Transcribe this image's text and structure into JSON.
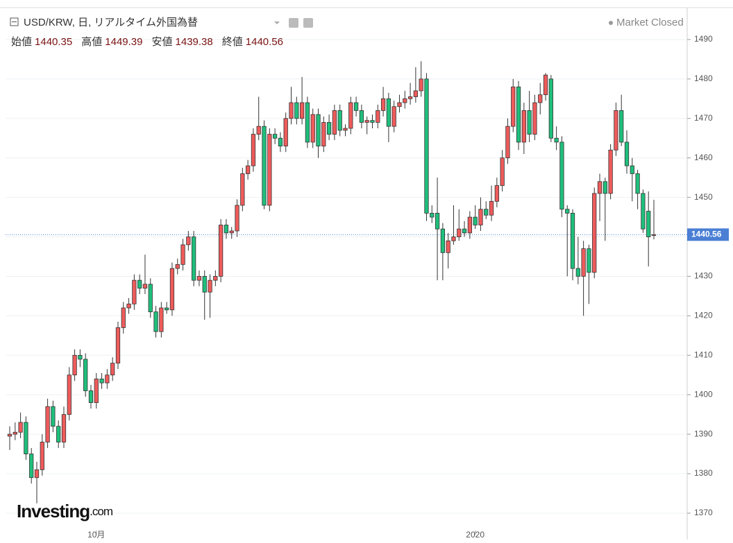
{
  "chart_data": {
    "type": "candlestick",
    "title": "USD/KRW, 日, リアルタイム外国為替",
    "status": "Market Closed",
    "ohlc_labels": [
      "始値",
      "高値",
      "安値",
      "終値"
    ],
    "brand": "Investing",
    "brand_suffix": ".com",
    "up_color": "#ef5b5b",
    "down_color": "#1fbf7c",
    "price_line_color": "#4a7fd4",
    "ylim": [
      1365.6,
      1497.9
    ],
    "yticks": [
      1370,
      1380,
      1390,
      1400,
      1410,
      1420,
      1430,
      1440,
      1450,
      1460,
      1470,
      1480,
      1490
    ],
    "grid": true,
    "categories": [
      null,
      null,
      null,
      null,
      null,
      null,
      null,
      null,
      null,
      null,
      null,
      null,
      null,
      null,
      null,
      null,
      "10月",
      null,
      null,
      null,
      null,
      null,
      null,
      null,
      null,
      null,
      null,
      null,
      null,
      null,
      null,
      null,
      null,
      null,
      null,
      null,
      null,
      null,
      null,
      null,
      null,
      null,
      null,
      null,
      null,
      null,
      null,
      null,
      null,
      null,
      null,
      null,
      null,
      null,
      null,
      null,
      null,
      null,
      null,
      null,
      null,
      null,
      null,
      null,
      null,
      null,
      null,
      null,
      null,
      null,
      null,
      null,
      null,
      null,
      null,
      null,
      null,
      null,
      null,
      null,
      null,
      null,
      null,
      null,
      null,
      null,
      "2020",
      null,
      null,
      null,
      null,
      null,
      null,
      null,
      null,
      null,
      null,
      null,
      null,
      null,
      null,
      null,
      null,
      null,
      null,
      null,
      null,
      null,
      null,
      null,
      null,
      null,
      null,
      null,
      null,
      null,
      null,
      null,
      null,
      null
    ],
    "candles": [
      [
        1389.5,
        1392,
        1386,
        1390
      ],
      [
        1390,
        1393,
        1388.5,
        1390.5
      ],
      [
        1390.5,
        1395.5,
        1389,
        1393
      ],
      [
        1393,
        1394.5,
        1383.5,
        1385
      ],
      [
        1385,
        1386.5,
        1377.5,
        1379
      ],
      [
        1379,
        1383,
        1372.5,
        1381
      ],
      [
        1381,
        1390,
        1379.5,
        1388
      ],
      [
        1388,
        1399,
        1386.5,
        1397
      ],
      [
        1397,
        1398.5,
        1390.5,
        1392
      ],
      [
        1392,
        1393.5,
        1386.5,
        1388
      ],
      [
        1388,
        1397,
        1386.5,
        1395
      ],
      [
        1395,
        1407,
        1393.5,
        1405
      ],
      [
        1405,
        1411.5,
        1403.5,
        1410
      ],
      [
        1410,
        1411.5,
        1407,
        1409
      ],
      [
        1409,
        1410.5,
        1399.5,
        1401
      ],
      [
        1401,
        1402.5,
        1396.5,
        1398
      ],
      [
        1398,
        1405.5,
        1396.5,
        1404
      ],
      [
        1404,
        1405.5,
        1401.5,
        1403
      ],
      [
        1403,
        1406.5,
        1401.5,
        1405
      ],
      [
        1405,
        1409.5,
        1403.5,
        1408
      ],
      [
        1408,
        1418.5,
        1406.5,
        1417
      ],
      [
        1417,
        1423.5,
        1415.5,
        1422
      ],
      [
        1422,
        1424.5,
        1420.5,
        1423
      ],
      [
        1423,
        1430.5,
        1421.5,
        1429
      ],
      [
        1429,
        1430.5,
        1425.5,
        1427
      ],
      [
        1427,
        1435.5,
        1425.5,
        1428
      ],
      [
        1428,
        1429.5,
        1419.5,
        1421
      ],
      [
        1421,
        1422.5,
        1414.5,
        1416
      ],
      [
        1416,
        1423.5,
        1414.5,
        1422
      ],
      [
        1422,
        1423.5,
        1420.5,
        1421.5
      ],
      [
        1421.5,
        1433.5,
        1420,
        1432
      ],
      [
        1432,
        1434.5,
        1430.5,
        1433
      ],
      [
        1433,
        1439.5,
        1431.5,
        1438
      ],
      [
        1438,
        1441.5,
        1436.5,
        1440
      ],
      [
        1440,
        1441.5,
        1427.5,
        1429
      ],
      [
        1429,
        1431.5,
        1427.5,
        1430
      ],
      [
        1430,
        1431.5,
        1419,
        1426
      ],
      [
        1426,
        1430.5,
        1419.5,
        1429
      ],
      [
        1429,
        1431.5,
        1427.5,
        1430
      ],
      [
        1430,
        1444.5,
        1428.5,
        1443
      ],
      [
        1443,
        1444.5,
        1439.5,
        1441
      ],
      [
        1441,
        1442.5,
        1439.5,
        1441.5
      ],
      [
        1441.5,
        1449.5,
        1440,
        1448
      ],
      [
        1448,
        1457.5,
        1446.5,
        1456
      ],
      [
        1456,
        1459.5,
        1454.5,
        1458
      ],
      [
        1458,
        1467.5,
        1456.5,
        1466
      ],
      [
        1466,
        1475.5,
        1464.5,
        1468
      ],
      [
        1468,
        1469.5,
        1447,
        1448
      ],
      [
        1448,
        1467.5,
        1446.5,
        1466
      ],
      [
        1466,
        1467.5,
        1463.5,
        1465
      ],
      [
        1465,
        1466.5,
        1461.5,
        1463
      ],
      [
        1463,
        1471.5,
        1461.5,
        1470
      ],
      [
        1470,
        1478,
        1468.5,
        1474
      ],
      [
        1474,
        1475.5,
        1468.5,
        1470
      ],
      [
        1470,
        1480.5,
        1468.5,
        1474
      ],
      [
        1474,
        1475.5,
        1462.5,
        1464
      ],
      [
        1464,
        1472.5,
        1462.5,
        1471
      ],
      [
        1471,
        1472.5,
        1460,
        1463
      ],
      [
        1463,
        1470.5,
        1461.5,
        1469
      ],
      [
        1469,
        1471,
        1464.5,
        1466
      ],
      [
        1466,
        1473.5,
        1464.5,
        1472
      ],
      [
        1472,
        1473.5,
        1465.5,
        1467
      ],
      [
        1467,
        1468.5,
        1465.5,
        1467.5
      ],
      [
        1467.5,
        1475.5,
        1466,
        1474
      ],
      [
        1474,
        1475.5,
        1470.5,
        1472
      ],
      [
        1472,
        1473.5,
        1467.5,
        1469
      ],
      [
        1469,
        1470.5,
        1466,
        1469.5
      ],
      [
        1469.5,
        1471,
        1467.5,
        1469
      ],
      [
        1469,
        1473.5,
        1467.5,
        1472
      ],
      [
        1472,
        1478,
        1470.5,
        1475
      ],
      [
        1475,
        1476.5,
        1464,
        1468
      ],
      [
        1468,
        1474.5,
        1466.5,
        1473
      ],
      [
        1473,
        1476,
        1471.5,
        1474
      ],
      [
        1474,
        1477,
        1472.5,
        1475
      ],
      [
        1475,
        1479,
        1473.5,
        1475.5
      ],
      [
        1475.5,
        1483,
        1474,
        1477
      ],
      [
        1477,
        1484.5,
        1475.5,
        1480
      ],
      [
        1480,
        1481.5,
        1444,
        1446
      ],
      [
        1446,
        1448,
        1443.5,
        1445
      ],
      [
        1446,
        1455,
        1429,
        1442
      ],
      [
        1442,
        1443.5,
        1429,
        1436
      ],
      [
        1436,
        1441,
        1432,
        1439
      ],
      [
        1439,
        1448,
        1438,
        1440
      ],
      [
        1440,
        1447,
        1439,
        1442
      ],
      [
        1442,
        1444,
        1440,
        1441
      ],
      [
        1441,
        1446.5,
        1439.5,
        1445
      ],
      [
        1445,
        1448,
        1442,
        1443
      ],
      [
        1443,
        1450,
        1441.5,
        1447
      ],
      [
        1447,
        1449,
        1444.5,
        1445.5
      ],
      [
        1445.5,
        1453,
        1444,
        1449
      ],
      [
        1449,
        1455,
        1447.5,
        1453
      ],
      [
        1453,
        1462,
        1451.5,
        1460
      ],
      [
        1460,
        1470,
        1458.5,
        1468
      ],
      [
        1468,
        1480,
        1466.5,
        1478
      ],
      [
        1478,
        1479.5,
        1462,
        1464
      ],
      [
        1464,
        1474,
        1461,
        1472
      ],
      [
        1472,
        1477,
        1464,
        1466
      ],
      [
        1466,
        1476,
        1464.5,
        1474
      ],
      [
        1474,
        1479,
        1471,
        1476
      ],
      [
        1476,
        1481.5,
        1474.5,
        1481
      ],
      [
        1480,
        1481,
        1464,
        1465
      ],
      [
        1465,
        1468,
        1462,
        1464
      ],
      [
        1464,
        1465.5,
        1445,
        1447
      ],
      [
        1447,
        1448,
        1430,
        1446
      ],
      [
        1446,
        1447,
        1429,
        1432
      ],
      [
        1432,
        1440,
        1428,
        1430
      ],
      [
        1430,
        1439,
        1420,
        1437
      ],
      [
        1437,
        1438,
        1423,
        1431
      ],
      [
        1431,
        1452.5,
        1429.5,
        1451
      ],
      [
        1451,
        1456,
        1444,
        1454
      ],
      [
        1454,
        1455,
        1439,
        1451
      ],
      [
        1451,
        1463.5,
        1449.5,
        1462
      ],
      [
        1462,
        1474,
        1460.5,
        1472
      ],
      [
        1472,
        1476,
        1463,
        1464
      ],
      [
        1464,
        1467,
        1456,
        1458
      ],
      [
        1458,
        1460,
        1449,
        1456
      ],
      [
        1456,
        1457,
        1447,
        1451
      ],
      [
        1451,
        1452,
        1441,
        1442
      ],
      [
        1446.5,
        1451.5,
        1432.5,
        1440
      ],
      [
        1440.35,
        1449.39,
        1439.38,
        1440.56
      ]
    ]
  }
}
